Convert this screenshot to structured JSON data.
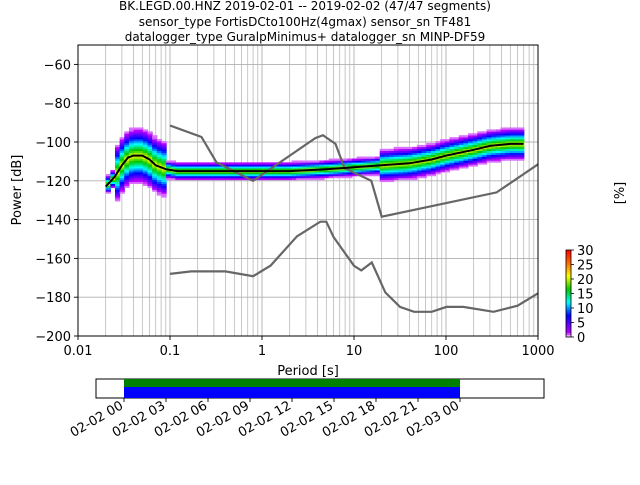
{
  "chart_data": {
    "type": "heatmap",
    "title_lines": [
      "BK.LEGD.00.HNZ   2019-02-01 -- 2019-02-02  (47/47 segments)",
      "sensor_type FortisDCto100Hz(4gmax) sensor_sn TF481",
      "datalogger_type GuralpMinimus+ datalogger_sn MINP-DF59"
    ],
    "xlabel": "Period [s]",
    "ylabel": "Power [dB]",
    "colorbar_label": "[%]",
    "x_scale": "log",
    "xlim": [
      0.01,
      1000
    ],
    "ylim": [
      -200,
      -50
    ],
    "x_ticks": [
      {
        "value": 0.01,
        "label": "0.01"
      },
      {
        "value": 0.1,
        "label": "0.1"
      },
      {
        "value": 1,
        "label": "1"
      },
      {
        "value": 10,
        "label": "10"
      },
      {
        "value": 100,
        "label": "100"
      },
      {
        "value": 1000,
        "label": "1000"
      }
    ],
    "y_ticks": [
      {
        "value": -60,
        "label": "−60"
      },
      {
        "value": -80,
        "label": "−80"
      },
      {
        "value": -100,
        "label": "−100"
      },
      {
        "value": -120,
        "label": "−120"
      },
      {
        "value": -140,
        "label": "−140"
      },
      {
        "value": -160,
        "label": "−160"
      },
      {
        "value": -180,
        "label": "−180"
      },
      {
        "value": -200,
        "label": "−200"
      }
    ],
    "grid": true,
    "colorbar": {
      "range": [
        0,
        30
      ],
      "ticks": [
        {
          "value": 0,
          "label": "0"
        },
        {
          "value": 5,
          "label": "5"
        },
        {
          "value": 10,
          "label": "10"
        },
        {
          "value": 15,
          "label": "15"
        },
        {
          "value": 20,
          "label": "20"
        },
        {
          "value": 25,
          "label": "25"
        },
        {
          "value": 30,
          "label": "30"
        }
      ],
      "colormap": "pqlx"
    },
    "mean_curve": [
      [
        0.02,
        -123
      ],
      [
        0.025,
        -118
      ],
      [
        0.03,
        -112
      ],
      [
        0.035,
        -108
      ],
      [
        0.04,
        -107
      ],
      [
        0.05,
        -107
      ],
      [
        0.06,
        -109
      ],
      [
        0.07,
        -112
      ],
      [
        0.09,
        -114
      ],
      [
        0.12,
        -115
      ],
      [
        0.2,
        -115
      ],
      [
        0.5,
        -115
      ],
      [
        1,
        -115
      ],
      [
        2,
        -115
      ],
      [
        5,
        -114
      ],
      [
        10,
        -113
      ],
      [
        20,
        -112
      ],
      [
        40,
        -111
      ],
      [
        70,
        -109
      ],
      [
        100,
        -107
      ],
      [
        200,
        -104
      ],
      [
        300,
        -102
      ],
      [
        500,
        -101
      ],
      [
        700,
        -101
      ]
    ],
    "nhnm": [
      [
        0.1,
        -91.5
      ],
      [
        0.22,
        -97.4
      ],
      [
        0.32,
        -110.5
      ],
      [
        0.8,
        -120
      ],
      [
        3.8,
        -98
      ],
      [
        4.6,
        -96.5
      ],
      [
        6.3,
        -101
      ],
      [
        7.9,
        -113.5
      ],
      [
        15.4,
        -120
      ],
      [
        20,
        -138.5
      ],
      [
        354.8,
        -126
      ],
      [
        1000,
        -111.5
      ]
    ],
    "nlnm": [
      [
        0.1,
        -168
      ],
      [
        0.17,
        -166.7
      ],
      [
        0.4,
        -166.7
      ],
      [
        0.8,
        -169.2
      ],
      [
        1.24,
        -163.7
      ],
      [
        2.4,
        -148.6
      ],
      [
        4.3,
        -141.1
      ],
      [
        5,
        -141.1
      ],
      [
        6,
        -149
      ],
      [
        10,
        -163.8
      ],
      [
        12,
        -166.2
      ],
      [
        15.6,
        -162.1
      ],
      [
        21.9,
        -177.5
      ],
      [
        31.6,
        -185
      ],
      [
        45,
        -187.5
      ],
      [
        70,
        -187.5
      ],
      [
        101,
        -185
      ],
      [
        154,
        -185
      ],
      [
        328,
        -187.5
      ],
      [
        600,
        -184.4
      ],
      [
        1000,
        -178
      ]
    ],
    "timeline": {
      "tick_labels": [
        "02-02 00",
        "02-02 03",
        "02-02 06",
        "02-02 09",
        "02-02 12",
        "02-02 15",
        "02-02 18",
        "02-02 21",
        "02-03 00"
      ],
      "xlim_hours": [
        -2,
        30
      ],
      "data_hours": [
        0,
        24
      ],
      "colors": {
        "top": "#008000",
        "bottom": "#0000ff"
      }
    }
  }
}
